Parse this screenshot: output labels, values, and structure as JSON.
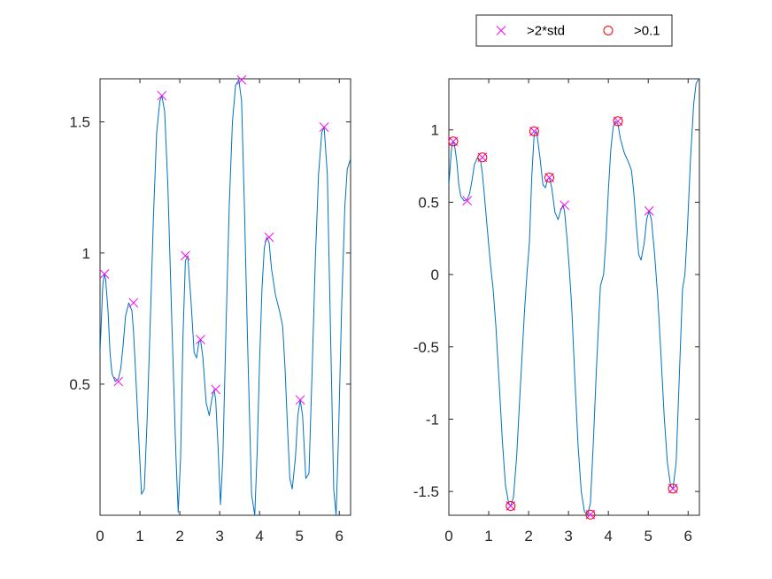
{
  "chart_data": [
    {
      "type": "line",
      "title": "",
      "xlabel": "",
      "ylabel": "",
      "xlim": [
        0,
        6.2832
      ],
      "ylim": [
        0.0,
        1.6644
      ],
      "xticks": [
        "0",
        "1",
        "2",
        "3",
        "4",
        "5",
        "6"
      ],
      "xtick_values": [
        0,
        1,
        2,
        3,
        4,
        5,
        6
      ],
      "yticks": [
        "0.5",
        "1",
        "1.5"
      ],
      "ytick_values": [
        0.5,
        1,
        1.5
      ],
      "grid": false,
      "line_color": "#0072BD",
      "series": [
        {
          "name": "",
          "kind": "abs",
          "x": [
            0,
            0.07,
            0.11,
            0.14,
            0.2,
            0.25,
            0.3,
            0.38,
            0.46,
            0.52,
            0.58,
            0.64,
            0.72,
            0.8,
            0.84,
            0.9,
            0.96,
            1.04,
            1.11,
            1.18,
            1.26,
            1.34,
            1.42,
            1.5,
            1.55,
            1.62,
            1.7,
            1.8,
            1.9,
            1.96,
            2.02,
            2.08,
            2.14,
            2.2,
            2.28,
            2.36,
            2.42,
            2.48,
            2.52,
            2.58,
            2.66,
            2.74,
            2.8,
            2.86,
            2.9,
            2.96,
            3.02,
            3.08,
            3.16,
            3.24,
            3.32,
            3.4,
            3.48,
            3.55,
            3.62,
            3.7,
            3.8,
            3.88,
            3.94,
            4.0,
            4.06,
            4.12,
            4.18,
            4.24,
            4.3,
            4.4,
            4.5,
            4.58,
            4.64,
            4.7,
            4.76,
            4.82,
            4.9,
            4.96,
            5.02,
            5.08,
            5.16,
            5.24,
            5.32,
            5.4,
            5.48,
            5.56,
            5.62,
            5.7,
            5.78,
            5.86,
            5.92,
            5.98,
            6.06,
            6.14,
            6.2,
            6.2832
          ],
          "y": [
            0.62,
            0.88,
            0.92,
            0.9,
            0.78,
            0.62,
            0.54,
            0.51,
            0.52,
            0.56,
            0.65,
            0.76,
            0.81,
            0.78,
            0.7,
            0.52,
            0.33,
            0.08,
            0.1,
            0.36,
            0.74,
            1.14,
            1.46,
            1.58,
            1.6,
            1.54,
            1.26,
            0.74,
            0.24,
            0.01,
            0.22,
            0.68,
            0.97,
            0.99,
            0.82,
            0.62,
            0.6,
            0.66,
            0.67,
            0.6,
            0.43,
            0.38,
            0.44,
            0.48,
            0.44,
            0.26,
            0.04,
            0.22,
            0.72,
            1.18,
            1.5,
            1.64,
            1.66,
            1.58,
            1.18,
            0.66,
            0.08,
            0.0,
            0.24,
            0.58,
            0.86,
            1.02,
            1.06,
            1.04,
            0.94,
            0.84,
            0.78,
            0.72,
            0.56,
            0.34,
            0.14,
            0.1,
            0.22,
            0.38,
            0.44,
            0.38,
            0.14,
            0.16,
            0.56,
            0.98,
            1.3,
            1.46,
            1.48,
            1.3,
            0.7,
            0.1,
            0.0,
            0.3,
            0.8,
            1.18,
            1.32,
            1.36
          ]
        }
      ],
      "markers": [
        {
          "name": ">2*std",
          "symbol": "x",
          "color": "#FF00FF",
          "x": [
            0.11,
            0.46,
            0.84,
            1.55,
            2.14,
            2.52,
            2.9,
            3.55,
            4.24,
            5.02,
            5.62
          ],
          "y": [
            0.92,
            0.51,
            0.81,
            1.6,
            0.99,
            0.67,
            0.48,
            1.66,
            1.06,
            0.44,
            1.48
          ]
        }
      ]
    },
    {
      "type": "line",
      "title": "",
      "xlabel": "",
      "ylabel": "",
      "xlim": [
        0,
        6.2832
      ],
      "ylim": [
        -1.6644,
        1.3534
      ],
      "xticks": [
        "0",
        "1",
        "2",
        "3",
        "4",
        "5",
        "6"
      ],
      "xtick_values": [
        0,
        1,
        2,
        3,
        4,
        5,
        6
      ],
      "yticks": [
        "-1.5",
        "-1",
        "-0.5",
        "0",
        "0.5",
        "1"
      ],
      "ytick_values": [
        -1.5,
        -1,
        -0.5,
        0,
        0.5,
        1
      ],
      "grid": false,
      "line_color": "#0072BD",
      "series": [
        {
          "name": "",
          "kind": "signed",
          "x": [
            0,
            0.07,
            0.11,
            0.14,
            0.2,
            0.25,
            0.3,
            0.38,
            0.46,
            0.52,
            0.58,
            0.64,
            0.72,
            0.8,
            0.84,
            0.9,
            0.96,
            1.04,
            1.11,
            1.18,
            1.26,
            1.34,
            1.42,
            1.5,
            1.55,
            1.62,
            1.7,
            1.8,
            1.9,
            1.96,
            2.02,
            2.08,
            2.14,
            2.2,
            2.28,
            2.36,
            2.42,
            2.48,
            2.52,
            2.58,
            2.66,
            2.74,
            2.8,
            2.86,
            2.9,
            2.96,
            3.02,
            3.08,
            3.16,
            3.24,
            3.32,
            3.4,
            3.48,
            3.55,
            3.62,
            3.7,
            3.8,
            3.88,
            3.94,
            4.0,
            4.06,
            4.12,
            4.18,
            4.24,
            4.3,
            4.4,
            4.5,
            4.58,
            4.64,
            4.7,
            4.76,
            4.82,
            4.9,
            4.96,
            5.02,
            5.08,
            5.16,
            5.24,
            5.32,
            5.4,
            5.48,
            5.56,
            5.62,
            5.7,
            5.78,
            5.86,
            5.92,
            5.98,
            6.06,
            6.14,
            6.2,
            6.2832
          ],
          "y": [
            0.62,
            0.88,
            0.92,
            0.9,
            0.78,
            0.62,
            0.54,
            0.51,
            0.52,
            0.56,
            0.65,
            0.76,
            0.81,
            0.78,
            0.7,
            0.52,
            0.33,
            0.08,
            -0.1,
            -0.36,
            -0.74,
            -1.14,
            -1.46,
            -1.58,
            -1.6,
            -1.54,
            -1.26,
            -0.74,
            -0.24,
            0.01,
            0.22,
            0.68,
            0.97,
            0.99,
            0.82,
            0.62,
            0.6,
            0.66,
            0.67,
            0.6,
            0.43,
            0.38,
            0.44,
            0.48,
            0.44,
            0.26,
            0.04,
            -0.22,
            -0.72,
            -1.18,
            -1.5,
            -1.64,
            -1.66,
            -1.58,
            -1.18,
            -0.66,
            -0.08,
            0.0,
            0.24,
            0.58,
            0.86,
            1.02,
            1.06,
            1.04,
            0.94,
            0.84,
            0.78,
            0.72,
            0.56,
            0.34,
            0.14,
            0.1,
            0.22,
            0.38,
            0.44,
            0.38,
            0.14,
            -0.16,
            -0.56,
            -0.98,
            -1.3,
            -1.46,
            -1.48,
            -1.3,
            -0.7,
            -0.1,
            0.0,
            0.3,
            0.8,
            1.18,
            1.32,
            1.36
          ]
        }
      ],
      "markers": [
        {
          "name": ">2*std",
          "symbol": "x",
          "color": "#FF00FF",
          "x": [
            0.11,
            0.46,
            0.84,
            1.55,
            2.14,
            2.52,
            2.9,
            3.55,
            4.24,
            5.02,
            5.62
          ],
          "y": [
            0.92,
            0.51,
            0.81,
            -1.6,
            0.99,
            0.67,
            0.48,
            -1.66,
            1.06,
            0.44,
            -1.48
          ]
        },
        {
          "name": ">0.1",
          "symbol": "o",
          "color": "#FF0000",
          "x": [
            0.11,
            0.84,
            1.55,
            2.14,
            2.52,
            3.55,
            4.24,
            5.62
          ],
          "y": [
            0.92,
            0.81,
            -1.6,
            0.99,
            0.67,
            -1.66,
            1.06,
            -1.48
          ]
        }
      ],
      "legend": {
        "placement": "top-outside",
        "entries": [
          {
            "label": ">2*std",
            "symbol": "x",
            "color": "#FF00FF"
          },
          {
            "label": ">0.1",
            "symbol": "o",
            "color": "#FF0000"
          }
        ]
      }
    }
  ]
}
